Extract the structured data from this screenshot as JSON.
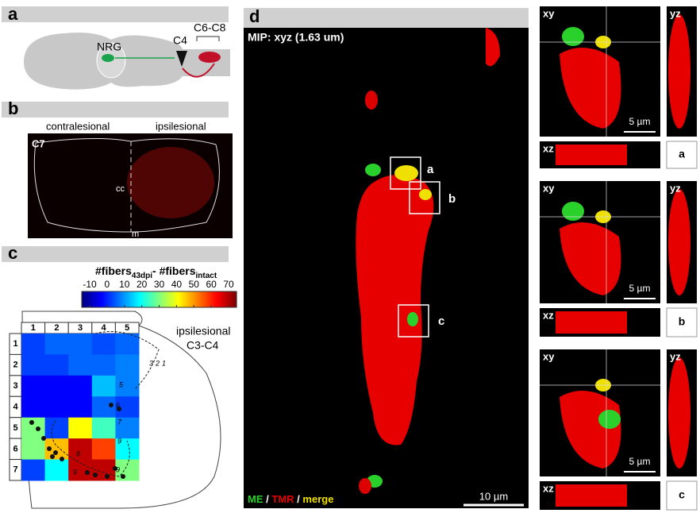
{
  "panel_a": {
    "letter": "a",
    "labels": [
      "NRG",
      "C4",
      "C6-C8"
    ]
  },
  "panel_b": {
    "letter": "b",
    "left_label": "contralesional",
    "right_label": "ipsilesional",
    "section": "C7",
    "marks": [
      "cc",
      "m"
    ]
  },
  "panel_c": {
    "letter": "c",
    "colorbar_label": [
      "#fibers",
      "43dpi",
      "- #fibers",
      "intact"
    ],
    "region_label": [
      "ipsilesional",
      "C3-C4"
    ],
    "chart_data": {
      "type": "heatmap",
      "x_categories": [
        1,
        2,
        3,
        4,
        5
      ],
      "y_categories": [
        1,
        2,
        3,
        4,
        5,
        6,
        7
      ],
      "values": [
        [
          5,
          8,
          8,
          6,
          8
        ],
        [
          5,
          5,
          8,
          8,
          10
        ],
        [
          0,
          0,
          0,
          15,
          10
        ],
        [
          0,
          0,
          0,
          8,
          5
        ],
        [
          30,
          5,
          40,
          25,
          10
        ],
        [
          30,
          45,
          65,
          55,
          20
        ],
        [
          5,
          20,
          65,
          65,
          30
        ]
      ],
      "zlim": [
        -10,
        70
      ],
      "zticks": [
        -10,
        0,
        10,
        20,
        30,
        40,
        50,
        60,
        70
      ],
      "colormap": "jet"
    },
    "lamina_labels": [
      "3",
      "2",
      "1",
      "5",
      "6",
      "7",
      "9",
      "8",
      "9",
      "9"
    ]
  },
  "panel_d": {
    "letter": "d",
    "caption": "MIP: xyz (1.63 um)",
    "boxes": [
      "a",
      "b",
      "c"
    ],
    "legend": [
      "ME",
      "/",
      "TMR",
      "/",
      "merge"
    ],
    "scale_bar": "10 µm"
  },
  "insets": [
    {
      "planes": [
        "xy",
        "yz",
        "xz"
      ],
      "scale_bar": "5 µm",
      "letter": "a"
    },
    {
      "planes": [
        "xy",
        "yz",
        "xz"
      ],
      "scale_bar": "5 µm",
      "letter": "b"
    },
    {
      "planes": [
        "xy",
        "yz",
        "xz"
      ],
      "scale_bar": "5 µm",
      "letter": "c"
    }
  ]
}
